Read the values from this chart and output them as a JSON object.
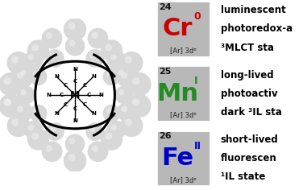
{
  "elements": [
    {
      "number": "24",
      "symbol": "Cr",
      "oxidation": "0",
      "config": "[Ar] 3d⁶",
      "symbol_color": "#cc0000",
      "box_color": "#b8b8b8",
      "description_lines": [
        "luminescent",
        "photoredox-a",
        "³MLCT sta"
      ]
    },
    {
      "number": "25",
      "symbol": "Mn",
      "oxidation": "I",
      "config": "[Ar] 3d⁶",
      "symbol_color": "#228B22",
      "box_color": "#b8b8b8",
      "description_lines": [
        "long-lived",
        "photoactiv",
        "dark ³IL sta"
      ]
    },
    {
      "number": "26",
      "symbol": "Fe",
      "oxidation": "II",
      "config": "[Ar] 3d⁶",
      "symbol_color": "#0000cc",
      "box_color": "#b8b8b8",
      "description_lines": [
        "short-lived",
        "fluorescen",
        "¹IL state"
      ]
    }
  ],
  "bg_color": "#ffffff",
  "sphere_color": "#d8d8d8",
  "sphere_highlight": "#eeeeee",
  "config_text_color": "#222222",
  "number_color": "#111111",
  "mol_bg": "#ffffff"
}
